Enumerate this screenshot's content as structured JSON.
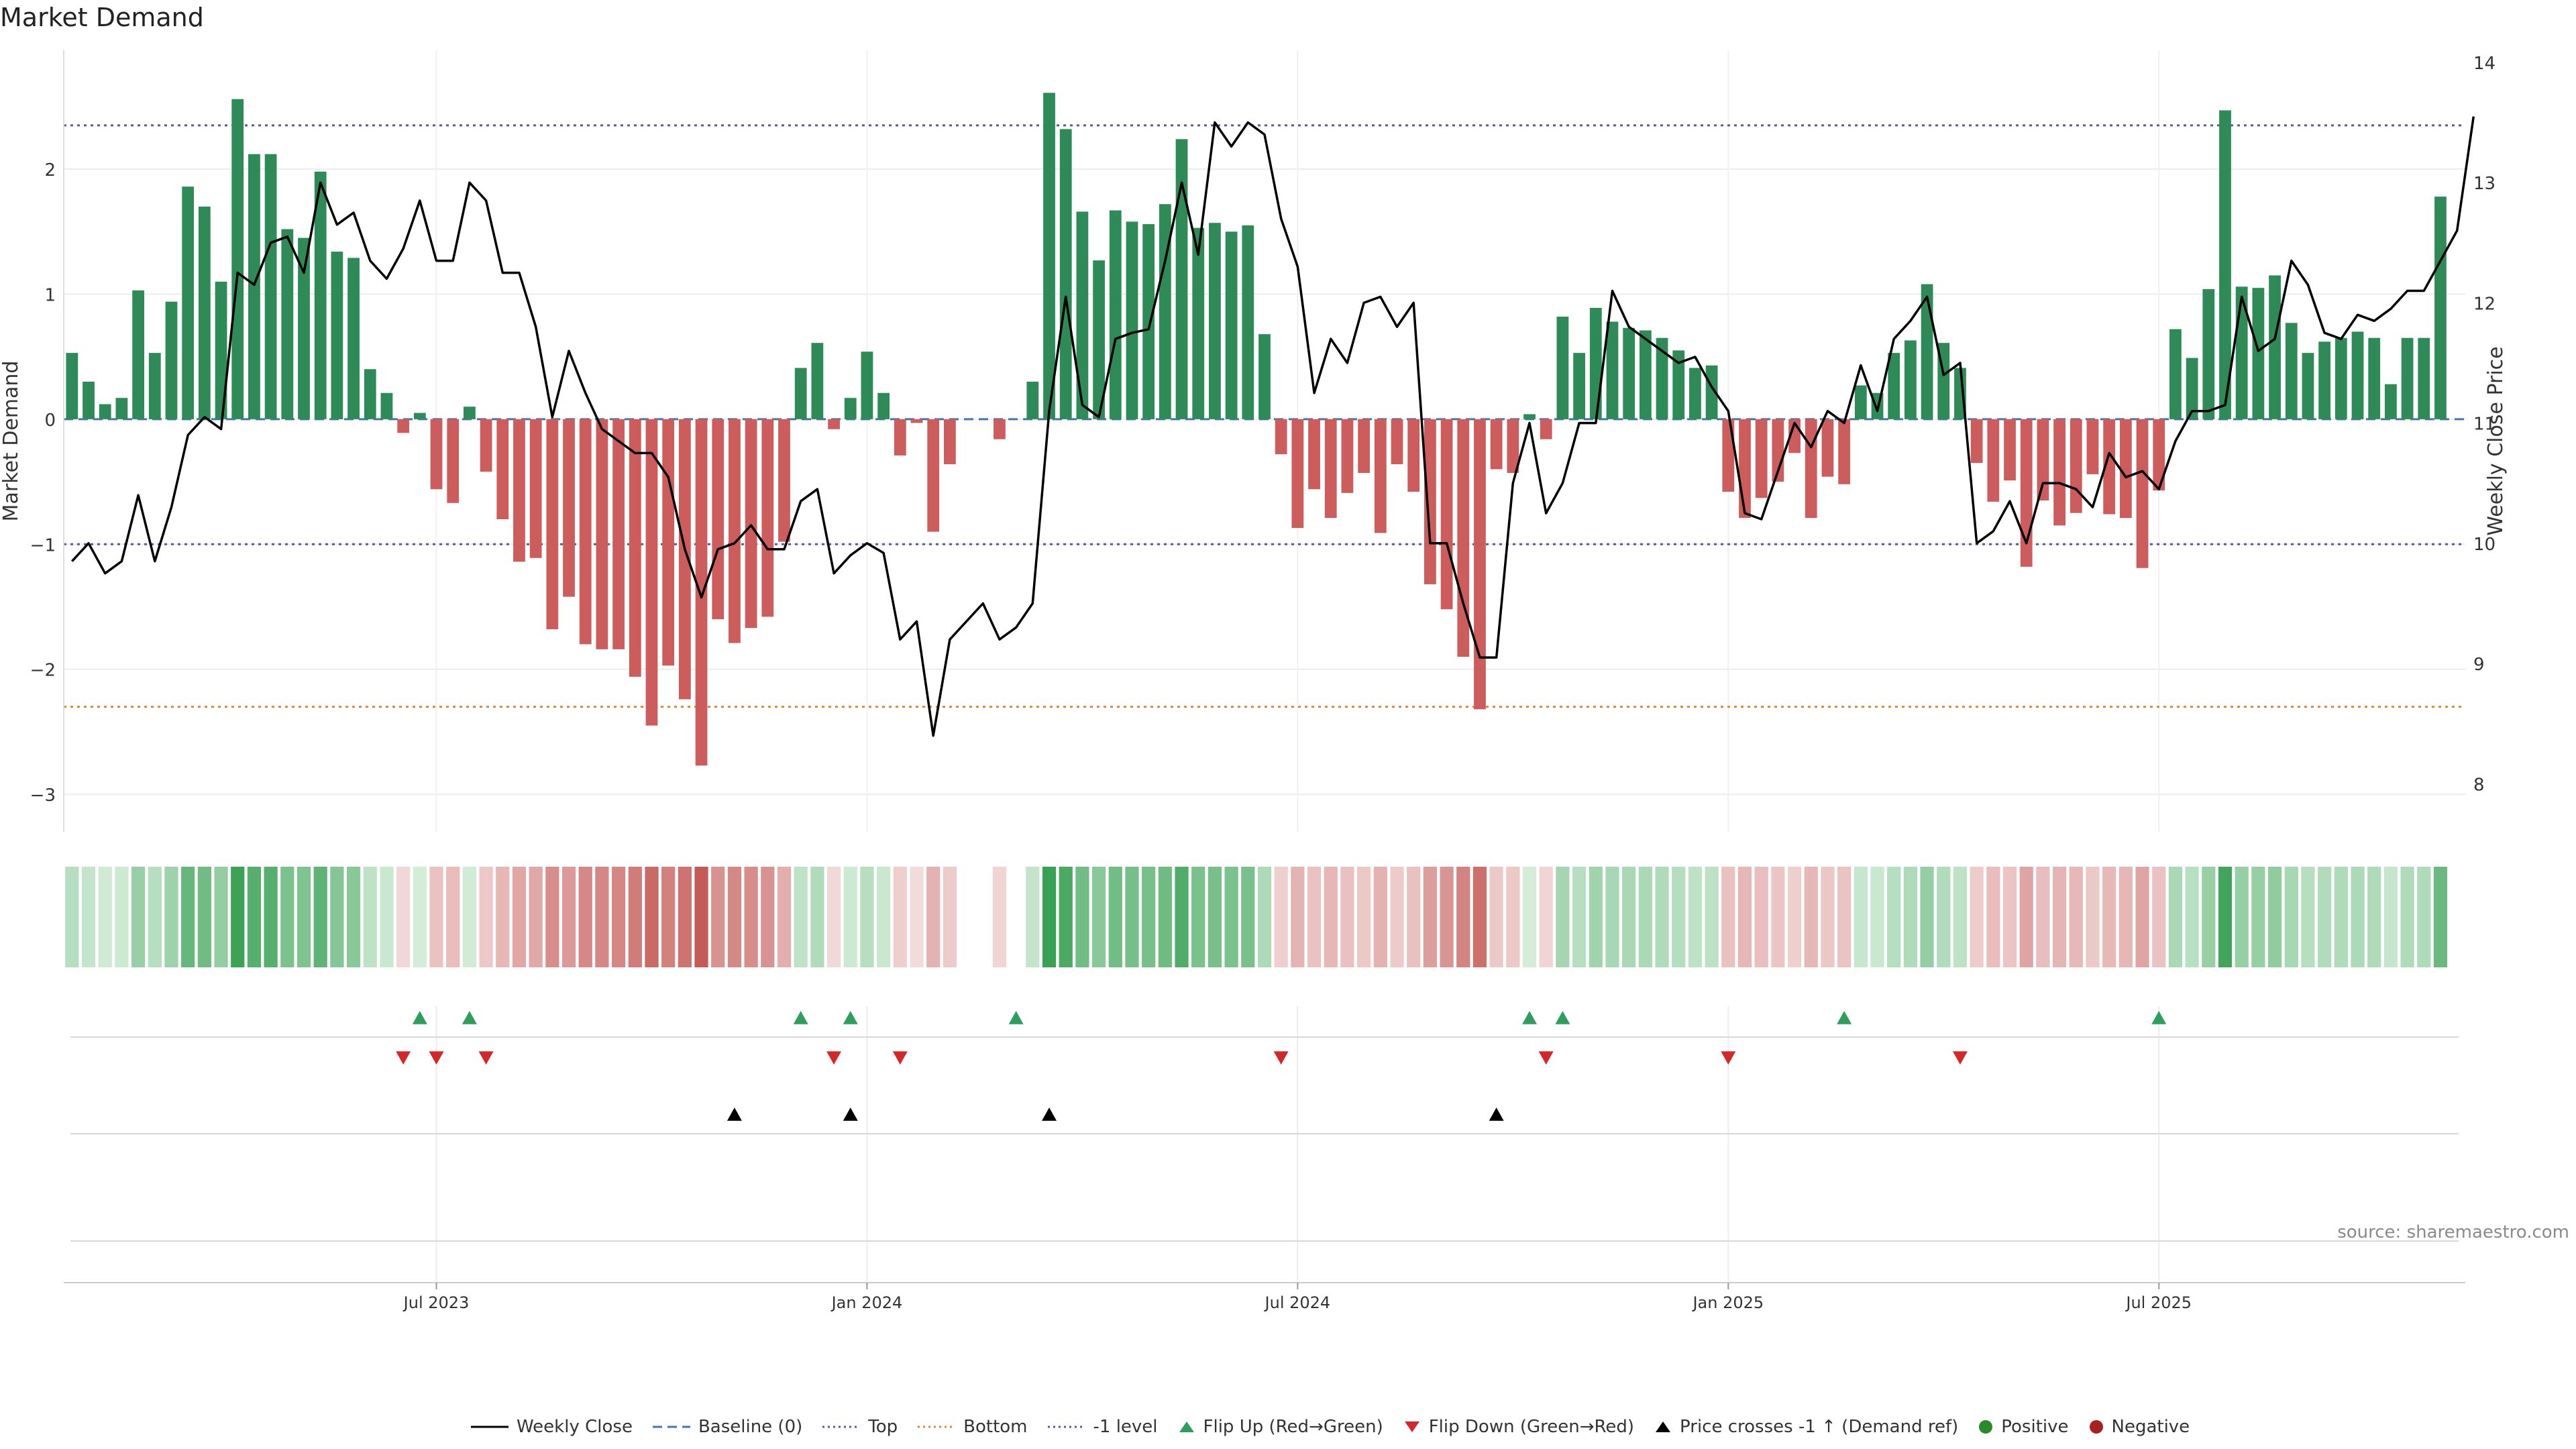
{
  "title": "Market Demand",
  "source": "source: sharemaestro.com",
  "colors": {
    "positive": "#2e8b57",
    "negative": "#cd5c5c",
    "price": "#000000",
    "top": "#5a5a9a",
    "bottom": "#e08a2c",
    "baseline": "#3a78b5",
    "flip_up": "#2ca05a",
    "flip_down": "#d62728",
    "cross": "#000000"
  },
  "chart_data": {
    "type": "bar+line",
    "title": "Market Demand",
    "ylabel": "Market Demand",
    "y2label": "Weekly Close Price",
    "ylim": [
      -3.3,
      2.95
    ],
    "y2lim": [
      7.6,
      14.1
    ],
    "yticks": [
      -3,
      -2,
      -1,
      0,
      1,
      2
    ],
    "ytick_labels": [
      "−3",
      "−2",
      "−1",
      "0",
      "1",
      "2"
    ],
    "y2ticks": [
      8,
      9,
      10,
      11,
      12,
      13,
      14
    ],
    "y2tick_labels": [
      "8",
      "9",
      "10",
      "11",
      "12",
      "13",
      "14"
    ],
    "x_range_weeks": [
      0,
      144
    ],
    "xticks": [
      {
        "week": 22,
        "label": "Jul 2023"
      },
      {
        "week": 48,
        "label": "Jan 2024"
      },
      {
        "week": 74,
        "label": "Jul 2024"
      },
      {
        "week": 100,
        "label": "Jan 2025"
      },
      {
        "week": 126,
        "label": "Jul 2025"
      }
    ],
    "reference_lines": {
      "top": 2.35,
      "bottom": -2.3,
      "minus_one": -1.0,
      "baseline": 0
    },
    "demand": [
      0.53,
      0.3,
      0.12,
      0.17,
      1.03,
      0.53,
      0.94,
      1.86,
      1.7,
      1.1,
      2.56,
      2.12,
      2.12,
      1.52,
      1.45,
      1.98,
      1.34,
      1.29,
      0.4,
      0.21,
      -0.11,
      0.05,
      -0.56,
      -0.67,
      0.1,
      -0.42,
      -0.8,
      -1.14,
      -1.11,
      -1.68,
      -1.42,
      -1.8,
      -1.84,
      -1.84,
      -2.06,
      -2.45,
      -1.97,
      -2.24,
      -2.77,
      -1.6,
      -1.79,
      -1.67,
      -1.58,
      -0.98,
      0.41,
      0.61,
      -0.08,
      0.17,
      0.54,
      0.21,
      -0.29,
      -0.03,
      -0.9,
      -0.36,
      0,
      0,
      -0.16,
      0,
      0.3,
      2.61,
      2.32,
      1.66,
      1.27,
      1.67,
      1.58,
      1.56,
      1.72,
      2.24,
      1.53,
      1.57,
      1.5,
      1.55,
      0.68,
      -0.28,
      -0.87,
      -0.56,
      -0.79,
      -0.59,
      -0.43,
      -0.91,
      -0.36,
      -0.58,
      -1.32,
      -1.52,
      -1.9,
      -2.32,
      -0.4,
      -0.43,
      0.04,
      -0.16,
      0.82,
      0.53,
      0.89,
      0.78,
      0.73,
      0.71,
      0.65,
      0.55,
      0.41,
      0.43,
      -0.58,
      -0.79,
      -0.63,
      -0.5,
      -0.27,
      -0.79,
      -0.46,
      -0.52,
      0.27,
      0.21,
      0.53,
      0.63,
      1.08,
      0.61,
      0.41,
      -0.35,
      -0.66,
      -0.49,
      -1.18,
      -0.65,
      -0.85,
      -0.75,
      -0.44,
      -0.76,
      -0.79,
      -1.19,
      -0.57,
      0.72,
      0.49,
      1.04,
      2.47,
      1.06,
      1.05,
      1.15,
      0.77,
      0.53,
      0.62,
      0.65,
      0.7,
      0.65,
      0.28,
      0.65,
      0.65,
      1.78
    ],
    "price": [
      9.85,
      10.0,
      9.75,
      9.85,
      10.4,
      9.85,
      10.3,
      10.9,
      11.05,
      10.95,
      12.25,
      12.15,
      12.5,
      12.55,
      12.25,
      13.0,
      12.65,
      12.75,
      12.35,
      12.2,
      12.45,
      12.85,
      12.35,
      12.35,
      13.0,
      12.85,
      12.25,
      12.25,
      11.8,
      11.05,
      11.6,
      11.25,
      10.95,
      10.85,
      10.75,
      10.75,
      10.55,
      9.95,
      9.55,
      9.95,
      10.0,
      10.15,
      9.95,
      9.95,
      10.35,
      10.45,
      9.75,
      9.9,
      10.0,
      9.92,
      9.2,
      9.35,
      8.4,
      9.2,
      9.35,
      9.5,
      9.2,
      9.3,
      9.5,
      11.1,
      12.05,
      11.15,
      11.05,
      11.7,
      11.75,
      11.78,
      12.35,
      13.0,
      12.4,
      13.5,
      13.3,
      13.5,
      13.4,
      12.7,
      12.3,
      11.25,
      11.7,
      11.5,
      12.0,
      12.05,
      11.8,
      12.0,
      10.0,
      10.0,
      9.5,
      9.05,
      9.05,
      10.5,
      11.0,
      10.25,
      10.5,
      11.0,
      11.0,
      12.1,
      11.8,
      11.7,
      11.6,
      11.5,
      11.55,
      11.3,
      11.1,
      10.25,
      10.2,
      10.6,
      11.0,
      10.8,
      11.1,
      11.0,
      11.48,
      11.1,
      11.7,
      11.85,
      12.05,
      11.4,
      11.5,
      10.0,
      10.1,
      10.35,
      10.0,
      10.5,
      10.5,
      10.45,
      10.3,
      10.75,
      10.55,
      10.6,
      10.45,
      10.85,
      11.1,
      11.1,
      11.15,
      12.05,
      11.6,
      11.7,
      12.35,
      12.15,
      11.75,
      11.7,
      11.9,
      11.85,
      11.95,
      12.1,
      12.1,
      12.35,
      12.6,
      13.55
    ],
    "signals": {
      "flip_up_weeks": [
        21,
        24,
        44,
        47,
        57,
        88,
        90,
        107,
        126
      ],
      "flip_down_weeks": [
        20,
        22,
        25,
        46,
        50,
        73,
        89,
        100,
        114
      ],
      "price_cross_weeks": [
        40,
        47,
        59,
        86
      ]
    },
    "series": [
      {
        "name": "Weekly Close",
        "type": "line"
      },
      {
        "name": "Baseline (0)",
        "type": "dashed"
      },
      {
        "name": "Top",
        "type": "dotted"
      },
      {
        "name": "Bottom",
        "type": "dotted"
      },
      {
        "name": "-1 level",
        "type": "dotted"
      },
      {
        "name": "Flip Up (Red→Green)",
        "type": "marker"
      },
      {
        "name": "Flip Down (Green→Red)",
        "type": "marker"
      },
      {
        "name": "Price crosses -1 ↑ (Demand ref)",
        "type": "marker"
      },
      {
        "name": "Positive",
        "type": "marker"
      },
      {
        "name": "Negative",
        "type": "marker"
      }
    ]
  },
  "legend": {
    "weekly_close": "Weekly Close",
    "baseline": "Baseline (0)",
    "top": "Top",
    "bottom": "Bottom",
    "minus_one": "-1 level",
    "flip_up": "Flip Up (Red→Green)",
    "flip_down": "Flip Down (Green→Red)",
    "price_cross": "Price crosses -1 ↑ (Demand ref)",
    "positive": "Positive",
    "negative": "Negative"
  }
}
